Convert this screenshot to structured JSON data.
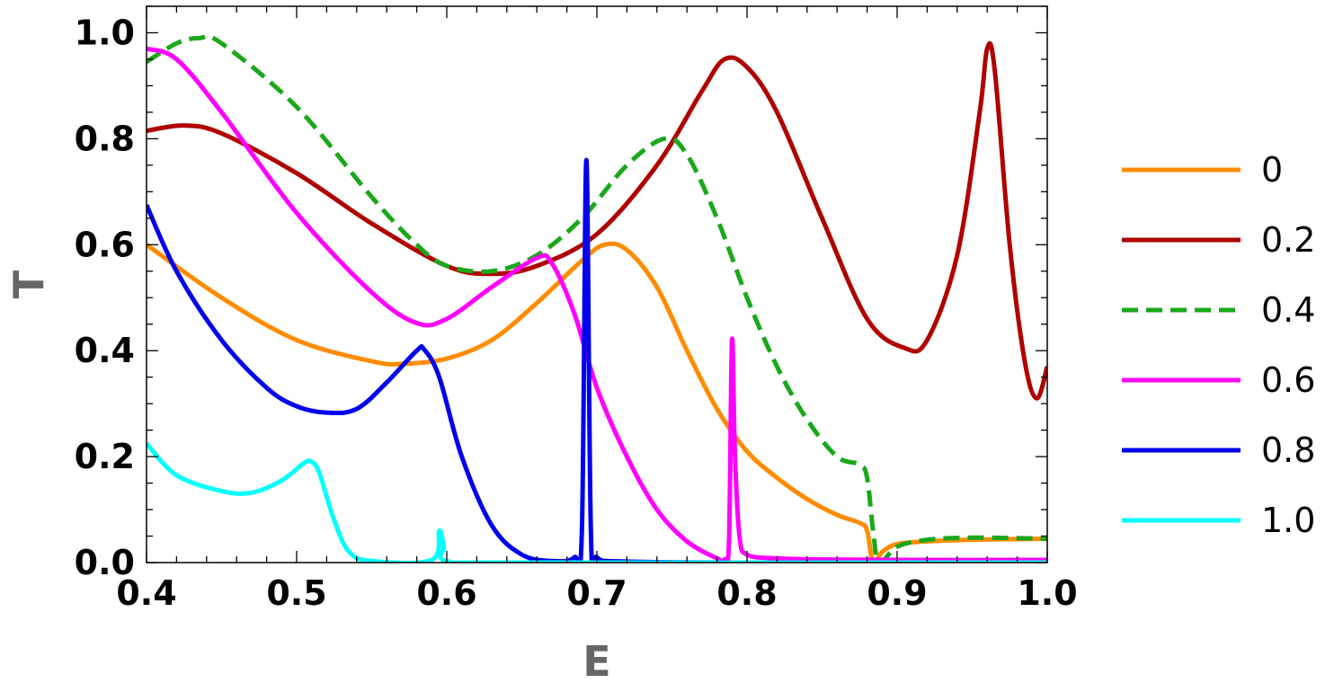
{
  "chart_data": {
    "type": "line",
    "xlabel": "E",
    "ylabel": "T",
    "xlim": [
      0.4,
      1.0
    ],
    "ylim": [
      0.0,
      1.05
    ],
    "x_ticks": [
      "0.4",
      "0.5",
      "0.6",
      "0.7",
      "0.8",
      "0.9",
      "1.0"
    ],
    "y_ticks": [
      "0.0",
      "0.2",
      "0.4",
      "0.6",
      "0.8",
      "1.0"
    ],
    "grid": false,
    "legend_position": "right",
    "series": [
      {
        "name": "0",
        "color": "#FF8C00",
        "dash": "solid",
        "points": [
          [
            0.4,
            0.6
          ],
          [
            0.45,
            0.5
          ],
          [
            0.5,
            0.42
          ],
          [
            0.55,
            0.38
          ],
          [
            0.57,
            0.375
          ],
          [
            0.6,
            0.385
          ],
          [
            0.63,
            0.42
          ],
          [
            0.66,
            0.49
          ],
          [
            0.69,
            0.57
          ],
          [
            0.705,
            0.6
          ],
          [
            0.72,
            0.59
          ],
          [
            0.74,
            0.52
          ],
          [
            0.76,
            0.4
          ],
          [
            0.78,
            0.29
          ],
          [
            0.8,
            0.21
          ],
          [
            0.82,
            0.16
          ],
          [
            0.84,
            0.12
          ],
          [
            0.86,
            0.09
          ],
          [
            0.875,
            0.075
          ],
          [
            0.88,
            0.06
          ],
          [
            0.884,
            0.0
          ],
          [
            0.89,
            0.02
          ],
          [
            0.9,
            0.035
          ],
          [
            0.92,
            0.04
          ],
          [
            0.95,
            0.043
          ],
          [
            1.0,
            0.045
          ]
        ]
      },
      {
        "name": "0.2",
        "color": "#B00000",
        "dash": "solid",
        "points": [
          [
            0.4,
            0.815
          ],
          [
            0.425,
            0.825
          ],
          [
            0.45,
            0.81
          ],
          [
            0.5,
            0.735
          ],
          [
            0.55,
            0.64
          ],
          [
            0.6,
            0.56
          ],
          [
            0.63,
            0.545
          ],
          [
            0.66,
            0.56
          ],
          [
            0.7,
            0.62
          ],
          [
            0.74,
            0.75
          ],
          [
            0.77,
            0.89
          ],
          [
            0.785,
            0.95
          ],
          [
            0.8,
            0.935
          ],
          [
            0.82,
            0.85
          ],
          [
            0.85,
            0.65
          ],
          [
            0.88,
            0.46
          ],
          [
            0.905,
            0.405
          ],
          [
            0.92,
            0.42
          ],
          [
            0.94,
            0.58
          ],
          [
            0.955,
            0.85
          ],
          [
            0.96,
            0.97
          ],
          [
            0.965,
            0.93
          ],
          [
            0.975,
            0.6
          ],
          [
            0.985,
            0.38
          ],
          [
            0.993,
            0.31
          ],
          [
            1.0,
            0.37
          ]
        ]
      },
      {
        "name": "0.4",
        "color": "#1AA81A",
        "dash": "dashed",
        "points": [
          [
            0.4,
            0.945
          ],
          [
            0.42,
            0.98
          ],
          [
            0.435,
            0.99
          ],
          [
            0.45,
            0.98
          ],
          [
            0.5,
            0.86
          ],
          [
            0.55,
            0.69
          ],
          [
            0.58,
            0.6
          ],
          [
            0.6,
            0.56
          ],
          [
            0.63,
            0.55
          ],
          [
            0.66,
            0.58
          ],
          [
            0.69,
            0.65
          ],
          [
            0.72,
            0.75
          ],
          [
            0.745,
            0.8
          ],
          [
            0.76,
            0.77
          ],
          [
            0.78,
            0.65
          ],
          [
            0.8,
            0.5
          ],
          [
            0.82,
            0.37
          ],
          [
            0.84,
            0.27
          ],
          [
            0.86,
            0.2
          ],
          [
            0.875,
            0.185
          ],
          [
            0.88,
            0.16
          ],
          [
            0.884,
            0.06
          ],
          [
            0.888,
            0.0
          ],
          [
            0.9,
            0.03
          ],
          [
            0.92,
            0.043
          ],
          [
            0.95,
            0.047
          ],
          [
            1.0,
            0.045
          ]
        ]
      },
      {
        "name": "0.6",
        "color": "#FF00FF",
        "dash": "solid",
        "points": [
          [
            0.4,
            0.97
          ],
          [
            0.42,
            0.95
          ],
          [
            0.45,
            0.85
          ],
          [
            0.5,
            0.66
          ],
          [
            0.55,
            0.51
          ],
          [
            0.58,
            0.452
          ],
          [
            0.6,
            0.46
          ],
          [
            0.63,
            0.52
          ],
          [
            0.66,
            0.575
          ],
          [
            0.67,
            0.565
          ],
          [
            0.685,
            0.47
          ],
          [
            0.7,
            0.33
          ],
          [
            0.72,
            0.2
          ],
          [
            0.74,
            0.1
          ],
          [
            0.76,
            0.04
          ],
          [
            0.78,
            0.008
          ],
          [
            0.785,
            0.006
          ],
          [
            0.788,
            0.04
          ],
          [
            0.79,
            0.42
          ],
          [
            0.792,
            0.2
          ],
          [
            0.795,
            0.05
          ],
          [
            0.8,
            0.015
          ],
          [
            0.82,
            0.008
          ],
          [
            0.85,
            0.006
          ],
          [
            0.9,
            0.005
          ],
          [
            1.0,
            0.005
          ]
        ]
      },
      {
        "name": "0.8",
        "color": "#0000EE",
        "dash": "solid",
        "points": [
          [
            0.4,
            0.675
          ],
          [
            0.42,
            0.55
          ],
          [
            0.45,
            0.42
          ],
          [
            0.48,
            0.33
          ],
          [
            0.5,
            0.295
          ],
          [
            0.52,
            0.283
          ],
          [
            0.54,
            0.29
          ],
          [
            0.56,
            0.34
          ],
          [
            0.58,
            0.4
          ],
          [
            0.585,
            0.402
          ],
          [
            0.595,
            0.35
          ],
          [
            0.61,
            0.2
          ],
          [
            0.63,
            0.07
          ],
          [
            0.65,
            0.015
          ],
          [
            0.67,
            0.003
          ],
          [
            0.685,
            0.01
          ],
          [
            0.69,
            0.06
          ],
          [
            0.693,
            0.76
          ],
          [
            0.696,
            0.06
          ],
          [
            0.7,
            0.01
          ],
          [
            0.72,
            0.002
          ],
          [
            0.8,
            0.0
          ],
          [
            1.0,
            0.0
          ]
        ]
      },
      {
        "name": "1.0",
        "color": "#00FFFF",
        "dash": "solid",
        "points": [
          [
            0.4,
            0.225
          ],
          [
            0.42,
            0.165
          ],
          [
            0.45,
            0.135
          ],
          [
            0.47,
            0.132
          ],
          [
            0.49,
            0.155
          ],
          [
            0.505,
            0.188
          ],
          [
            0.51,
            0.19
          ],
          [
            0.515,
            0.17
          ],
          [
            0.525,
            0.08
          ],
          [
            0.535,
            0.02
          ],
          [
            0.55,
            0.003
          ],
          [
            0.59,
            0.005
          ],
          [
            0.595,
            0.06
          ],
          [
            0.598,
            0.03
          ],
          [
            0.6,
            0.003
          ],
          [
            0.65,
            0.0
          ],
          [
            1.0,
            0.0
          ]
        ]
      }
    ]
  }
}
